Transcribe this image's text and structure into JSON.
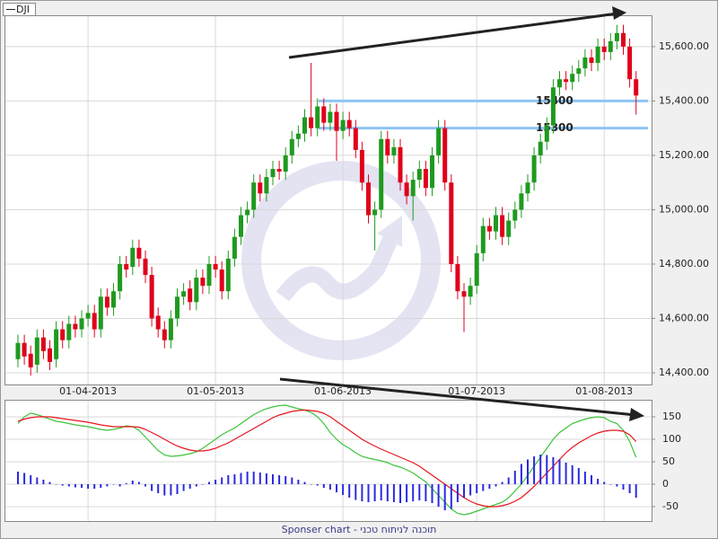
{
  "chart_data": [
    {
      "type": "candlestick",
      "name": "DJI",
      "up_color": "#1f9a1f",
      "down_color": "#e0001b",
      "level_color": "#8cc4f4",
      "grid": true,
      "categories": [
        null,
        null,
        null,
        null,
        null,
        null,
        null,
        null,
        null,
        null,
        null,
        "01-04-2013",
        null,
        null,
        null,
        null,
        null,
        null,
        null,
        null,
        null,
        null,
        null,
        null,
        null,
        null,
        null,
        null,
        null,
        null,
        null,
        "01-05-2013",
        null,
        null,
        null,
        null,
        null,
        null,
        null,
        null,
        null,
        null,
        null,
        null,
        null,
        null,
        null,
        null,
        null,
        null,
        null,
        "01-06-2013",
        null,
        null,
        null,
        null,
        null,
        null,
        null,
        null,
        null,
        null,
        null,
        null,
        null,
        null,
        null,
        null,
        null,
        null,
        null,
        null,
        "01-07-2013",
        null,
        null,
        null,
        null,
        null,
        null,
        null,
        null,
        null,
        null,
        null,
        null,
        null,
        null,
        null,
        null,
        null,
        null,
        null,
        "01-08-2013",
        null,
        null,
        null,
        null,
        null
      ],
      "open": [
        14450,
        14510,
        14470,
        14430,
        14530,
        14490,
        14450,
        14560,
        14520,
        14580,
        14560,
        14600,
        14620,
        14560,
        14680,
        14640,
        14700,
        14800,
        14790,
        14860,
        14820,
        14760,
        14610,
        14560,
        14520,
        14600,
        14680,
        14710,
        14660,
        14750,
        14720,
        14800,
        14780,
        14700,
        14820,
        14900,
        14980,
        15000,
        15100,
        15060,
        15120,
        15150,
        15140,
        15200,
        15260,
        15280,
        15340,
        15300,
        15380,
        15320,
        15360,
        15290,
        15330,
        15300,
        15220,
        15100,
        14980,
        15000,
        15260,
        15200,
        15230,
        15100,
        15050,
        15110,
        15150,
        15080,
        15200,
        15300,
        15100,
        14800,
        14700,
        14680,
        14720,
        14840,
        14940,
        14920,
        14980,
        14900,
        14960,
        15000,
        15060,
        15100,
        15200,
        15250,
        15310,
        15450,
        15480,
        15470,
        15500,
        15520,
        15560,
        15540,
        15600,
        15580,
        15620,
        15650,
        15600,
        15480
      ],
      "high": [
        14540,
        14540,
        14500,
        14560,
        14560,
        14520,
        14590,
        14590,
        14610,
        14610,
        14630,
        14650,
        14650,
        14710,
        14710,
        14730,
        14830,
        14830,
        14890,
        14890,
        14850,
        14790,
        14640,
        14590,
        14630,
        14710,
        14730,
        14740,
        14780,
        14780,
        14830,
        14830,
        14810,
        14850,
        14930,
        15010,
        15030,
        15130,
        15130,
        15150,
        15180,
        15180,
        15230,
        15290,
        15310,
        15370,
        15540,
        15410,
        15410,
        15390,
        15390,
        15360,
        15360,
        15330,
        15250,
        15130,
        15030,
        15290,
        15290,
        15260,
        15260,
        15130,
        15140,
        15180,
        15180,
        15230,
        15330,
        15330,
        15130,
        14830,
        14730,
        14750,
        14870,
        14970,
        14970,
        15010,
        15010,
        14990,
        15030,
        15090,
        15130,
        15230,
        15280,
        15340,
        15480,
        15510,
        15510,
        15530,
        15550,
        15590,
        15590,
        15630,
        15630,
        15650,
        15680,
        15680,
        15630,
        15510
      ],
      "low": [
        14420,
        14430,
        14390,
        14400,
        14450,
        14410,
        14420,
        14490,
        14490,
        14530,
        14530,
        14570,
        14530,
        14530,
        14610,
        14610,
        14670,
        14750,
        14760,
        14790,
        14730,
        14570,
        14530,
        14490,
        14490,
        14570,
        14650,
        14630,
        14630,
        14690,
        14690,
        14750,
        14670,
        14670,
        14790,
        14870,
        14950,
        14970,
        15030,
        15030,
        15090,
        15110,
        15110,
        15170,
        15230,
        15250,
        15270,
        15270,
        15290,
        15290,
        15180,
        15260,
        15270,
        15190,
        15070,
        14950,
        14850,
        14970,
        15170,
        15170,
        15070,
        15020,
        14960,
        15080,
        15050,
        15050,
        15170,
        15070,
        14770,
        14670,
        14550,
        14650,
        14690,
        14810,
        14890,
        14890,
        14870,
        14870,
        14930,
        14970,
        15030,
        15070,
        15170,
        15220,
        15280,
        15420,
        15440,
        15440,
        15470,
        15490,
        15510,
        15510,
        15550,
        15550,
        15590,
        15570,
        15450,
        15350
      ],
      "close": [
        14510,
        14460,
        14420,
        14530,
        14480,
        14440,
        14560,
        14520,
        14580,
        14560,
        14600,
        14620,
        14560,
        14680,
        14640,
        14700,
        14800,
        14780,
        14860,
        14820,
        14760,
        14600,
        14560,
        14520,
        14600,
        14680,
        14700,
        14660,
        14750,
        14720,
        14800,
        14780,
        14700,
        14820,
        14900,
        14980,
        15000,
        15100,
        15060,
        15120,
        15150,
        15140,
        15200,
        15260,
        15280,
        15340,
        15300,
        15380,
        15320,
        15360,
        15290,
        15330,
        15300,
        15220,
        15100,
        14980,
        15000,
        15260,
        15200,
        15230,
        15100,
        15050,
        15110,
        15150,
        15080,
        15200,
        15300,
        15100,
        14800,
        14700,
        14680,
        14720,
        14840,
        14940,
        14920,
        14980,
        14900,
        14960,
        15000,
        15060,
        15100,
        15200,
        15250,
        15310,
        15450,
        15480,
        15470,
        15500,
        15520,
        15560,
        15540,
        15600,
        15580,
        15620,
        15650,
        15600,
        15480,
        15420
      ],
      "ylim": [
        14357,
        15712
      ],
      "yticks": [
        {
          "value": 14400,
          "label": "14,400.00"
        },
        {
          "value": 14600,
          "label": "14,600.00"
        },
        {
          "value": 14800,
          "label": "14,800.00"
        },
        {
          "value": 15000,
          "label": "15,000.00"
        },
        {
          "value": 15200,
          "label": "15,200.00"
        },
        {
          "value": 15400,
          "label": "15,400.00"
        },
        {
          "value": 15600,
          "label": "15,600.00"
        }
      ],
      "levels": [
        15400,
        15300
      ]
    },
    {
      "type": "indicator",
      "grid": true,
      "series": [
        {
          "name": "fast",
          "kind": "line",
          "color": "#3cc43c",
          "values": [
            135,
            150,
            158,
            155,
            150,
            145,
            140,
            138,
            135,
            132,
            130,
            128,
            125,
            122,
            120,
            122,
            125,
            130,
            128,
            120,
            105,
            90,
            75,
            65,
            62,
            63,
            65,
            68,
            72,
            80,
            90,
            100,
            110,
            118,
            125,
            135,
            145,
            155,
            162,
            168,
            172,
            175,
            176,
            172,
            168,
            165,
            160,
            150,
            135,
            115,
            100,
            88,
            80,
            70,
            62,
            58,
            55,
            52,
            48,
            42,
            38,
            32,
            25,
            15,
            5,
            -10,
            -25,
            -40,
            -55,
            -65,
            -68,
            -65,
            -60,
            -55,
            -50,
            -45,
            -40,
            -30,
            -15,
            0,
            20,
            40,
            60,
            80,
            100,
            115,
            125,
            135,
            140,
            145,
            148,
            150,
            148,
            140,
            135,
            120,
            95,
            60
          ]
        },
        {
          "name": "slow",
          "kind": "line",
          "color": "#e8141c",
          "values": [
            140,
            145,
            148,
            150,
            150,
            150,
            148,
            146,
            144,
            142,
            140,
            138,
            135,
            132,
            130,
            128,
            128,
            128,
            128,
            127,
            122,
            115,
            108,
            100,
            92,
            85,
            80,
            76,
            74,
            74,
            76,
            80,
            86,
            92,
            100,
            108,
            116,
            124,
            132,
            140,
            148,
            154,
            158,
            162,
            164,
            165,
            164,
            162,
            158,
            150,
            140,
            130,
            120,
            110,
            100,
            92,
            85,
            78,
            72,
            66,
            60,
            54,
            48,
            40,
            30,
            20,
            10,
            0,
            -10,
            -20,
            -30,
            -38,
            -44,
            -48,
            -50,
            -50,
            -48,
            -44,
            -38,
            -30,
            -18,
            -5,
            10,
            25,
            40,
            55,
            70,
            82,
            92,
            100,
            108,
            114,
            118,
            120,
            120,
            118,
            110,
            95
          ]
        },
        {
          "name": "histogram",
          "kind": "bar",
          "color": "#2a2ae0",
          "values": [
            28,
            25,
            20,
            15,
            10,
            5,
            0,
            -3,
            -5,
            -7,
            -8,
            -10,
            -10,
            -8,
            -5,
            0,
            -5,
            2,
            8,
            5,
            -5,
            -15,
            -20,
            -25,
            -25,
            -22,
            -15,
            -10,
            -5,
            0,
            5,
            10,
            15,
            20,
            22,
            25,
            28,
            28,
            26,
            24,
            22,
            20,
            18,
            15,
            10,
            5,
            0,
            -3,
            -8,
            -12,
            -18,
            -24,
            -30,
            -35,
            -38,
            -40,
            -38,
            -36,
            -38,
            -40,
            -42,
            -40,
            -38,
            -36,
            -38,
            -42,
            -50,
            -58,
            -55,
            -40,
            -30,
            -25,
            -20,
            -15,
            -10,
            -5,
            5,
            15,
            30,
            45,
            55,
            62,
            66,
            65,
            60,
            55,
            48,
            42,
            36,
            28,
            20,
            12,
            5,
            0,
            -5,
            -12,
            -20,
            -30
          ]
        }
      ],
      "ylim": [
        -82,
        186
      ],
      "yticks": [
        -50,
        0,
        50,
        100,
        150
      ]
    }
  ],
  "footer": "Sponser chart - תוכנה לניתוח טכני"
}
